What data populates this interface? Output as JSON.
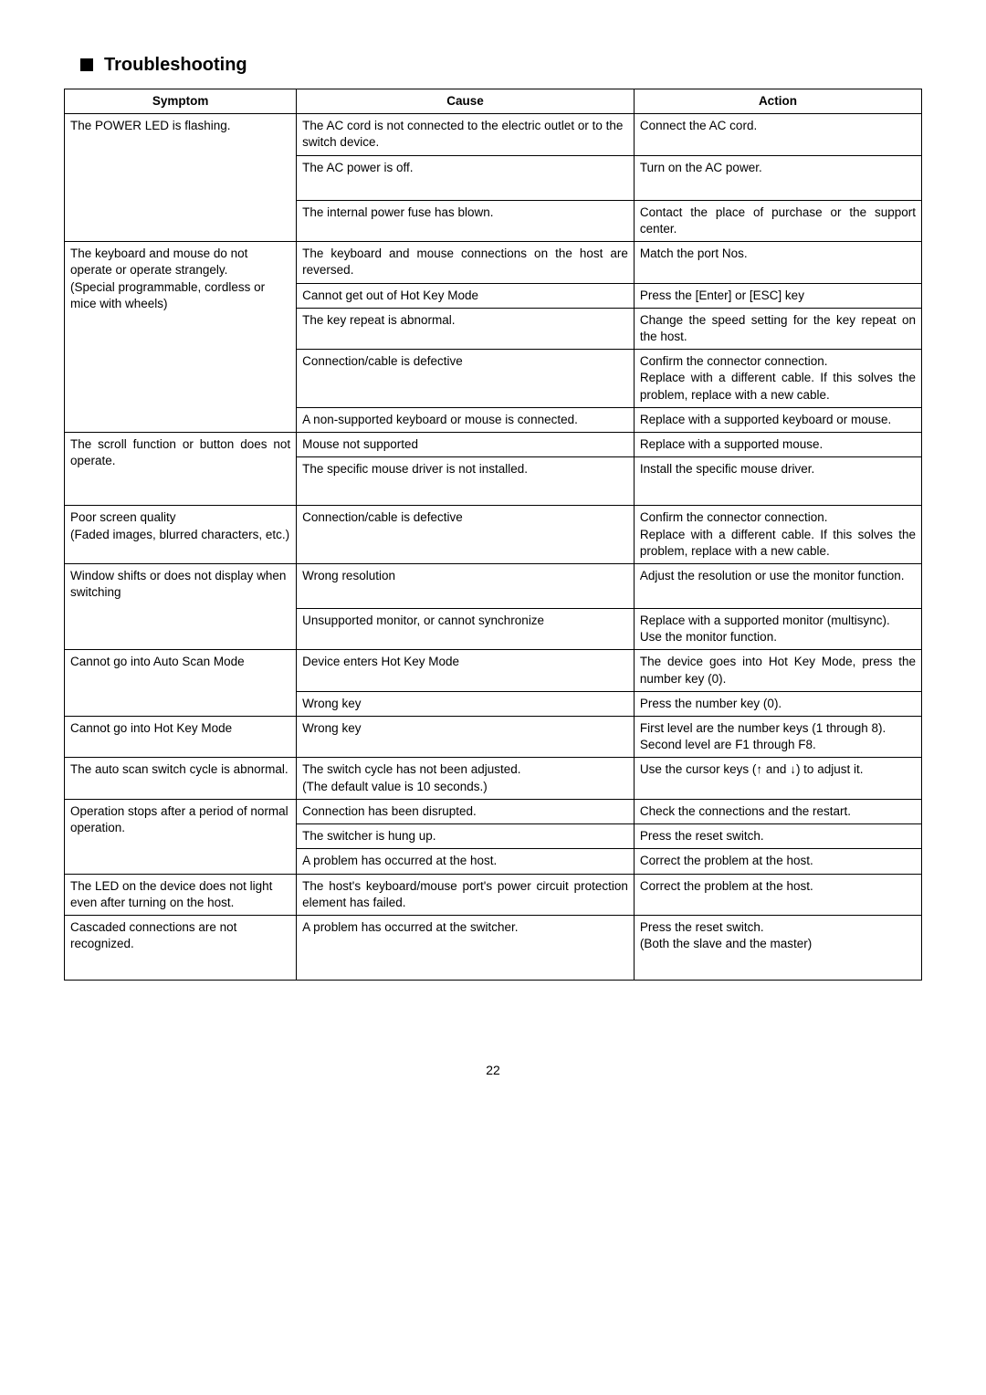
{
  "page": {
    "title": "Troubleshooting",
    "number": "22"
  },
  "headers": {
    "symptom": "Symptom",
    "cause": "Cause",
    "action": "Action"
  },
  "rows": {
    "r1": {
      "symptom": "The POWER LED is flashing.",
      "cause": "The AC cord is not connected to the electric outlet or to the switch device.",
      "action": "Connect the AC cord."
    },
    "r2": {
      "cause": "The AC power is off.",
      "action": "Turn on the AC power."
    },
    "r3": {
      "cause": "The internal power fuse has blown.",
      "action": "Contact the place of purchase or the support center."
    },
    "r4": {
      "symptom": "The keyboard and mouse do not operate or operate strangely.\n(Special programmable, cordless or mice with wheels)",
      "cause": "The keyboard and mouse connections on the host are reversed.",
      "action": "Match the port Nos."
    },
    "r5": {
      "cause": "Cannot get out of Hot Key Mode",
      "action": "Press the [Enter] or [ESC] key"
    },
    "r6": {
      "cause": "The key repeat is abnormal.",
      "action": "Change the speed setting for the key repeat on the host."
    },
    "r7": {
      "cause": "Connection/cable is defective",
      "action": "Confirm the connector connection.\nReplace with a different cable. If this solves the problem, replace with a new cable."
    },
    "r8": {
      "cause": "A non-supported keyboard or mouse is connected.",
      "action": "Replace with a supported keyboard or mouse."
    },
    "r9": {
      "symptom": "The scroll function or button does not operate.",
      "cause": "Mouse not supported",
      "action": "Replace with a supported mouse."
    },
    "r10": {
      "cause": "The specific mouse driver is not installed.",
      "action": "Install the specific mouse driver."
    },
    "r11": {
      "symptom": "Poor screen quality\n(Faded images, blurred characters, etc.)",
      "cause": "Connection/cable is defective",
      "action": "Confirm the connector connection.\nReplace with a different cable. If this solves the problem, replace with a new cable."
    },
    "r12": {
      "symptom": "Window shifts or does not display when switching",
      "cause": "Wrong resolution",
      "action": "Adjust the resolution or use the monitor function."
    },
    "r13": {
      "cause": "Unsupported monitor, or cannot synchronize",
      "action": "Replace with a supported monitor (multisync).\nUse the monitor function."
    },
    "r14": {
      "symptom": "Cannot go into Auto Scan Mode",
      "cause": "Device enters Hot Key Mode",
      "action": "The device goes into Hot Key Mode, press the number key (0)."
    },
    "r15": {
      "cause": "Wrong key",
      "action": "Press the number key (0)."
    },
    "r16": {
      "symptom": "Cannot go into Hot Key Mode",
      "cause": "Wrong key",
      "action": "First level are the number keys (1 through 8).\nSecond level are F1 through F8."
    },
    "r17": {
      "symptom": "The auto scan switch cycle is abnormal.",
      "cause": "The switch cycle has not been adjusted.\n(The default value is 10 seconds.)",
      "action": "Use the cursor keys (↑ and ↓) to adjust it."
    },
    "r18": {
      "symptom": "Operation stops after a period of normal operation.",
      "cause": "Connection has been disrupted.",
      "action": "Check the connections and the restart."
    },
    "r19": {
      "cause": "The switcher is hung up.",
      "action": "Press the reset switch."
    },
    "r20": {
      "cause": "A problem has occurred at the host.",
      "action": "Correct the problem at the host."
    },
    "r21": {
      "symptom": "The LED on the device does not light even after turning on the host.",
      "cause": "The host's keyboard/mouse port's power circuit protection element has failed.",
      "action": "Correct the problem at the host."
    },
    "r22": {
      "symptom": "Cascaded connections are not recognized.",
      "cause": "A problem has occurred at the switcher.",
      "action": "Press the reset switch.\n(Both the slave and the master)"
    }
  }
}
